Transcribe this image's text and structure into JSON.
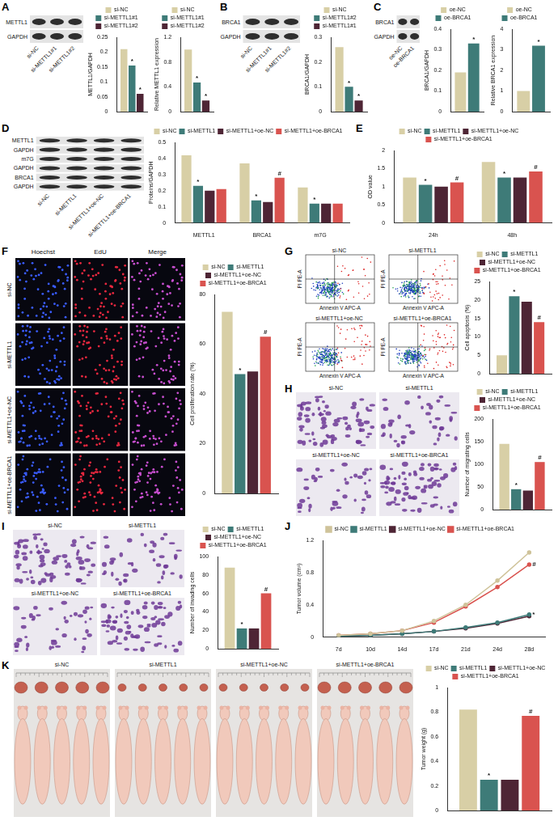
{
  "chart_data": [
    {
      "panel": "A",
      "type": "bar",
      "y_label": "METTL1/GAPDH",
      "categories": [
        null
      ],
      "series": [
        {
          "name": "si-NC",
          "color": "#d8cfa6",
          "values": [
            0.21
          ]
        },
        {
          "name": "si-METTL1#1",
          "color": "#3e7b78",
          "values": [
            0.155
          ],
          "annotations": [
            "*"
          ]
        },
        {
          "name": "si-METTL1#2",
          "color": "#4e2535",
          "values": [
            0.06
          ],
          "annotations": [
            "*"
          ]
        }
      ],
      "ylim": [
        0,
        0.25
      ],
      "yticks": [
        0,
        0.05,
        0.1,
        0.15,
        0.2,
        0.25
      ],
      "grid": false,
      "legend": "top",
      "tick_labels": "y"
    },
    {
      "panel": "A",
      "type": "bar",
      "y_label": "Relative METTL1 expression",
      "categories": [
        null
      ],
      "series": [
        {
          "name": "si-NC",
          "color": "#d8cfa6",
          "values": [
            1.0
          ]
        },
        {
          "name": "si-METTL1#1",
          "color": "#3e7b78",
          "values": [
            0.47
          ],
          "annotations": [
            "*"
          ]
        },
        {
          "name": "si-METTL1#2",
          "color": "#4e2535",
          "values": [
            0.18
          ],
          "annotations": [
            "*"
          ]
        }
      ],
      "ylim": [
        0,
        1.2
      ],
      "yticks": [
        0,
        0.4,
        0.8,
        1.2
      ],
      "grid": false,
      "legend": "top",
      "tick_labels": "y"
    },
    {
      "panel": "B",
      "type": "bar",
      "y_label": "BRCA1/GAPDH",
      "categories": [
        null
      ],
      "series": [
        {
          "name": "si-NC",
          "color": "#d8cfa6",
          "values": [
            0.26
          ]
        },
        {
          "name": "si-METTL1#2",
          "color": "#3e7b78",
          "values": [
            0.1
          ],
          "annotations": [
            "*"
          ]
        },
        {
          "name": "si-METTL1#1",
          "color": "#4e2535",
          "values": [
            0.045
          ],
          "annotations": [
            "*"
          ]
        }
      ],
      "ylim": [
        0,
        0.3
      ],
      "yticks": [
        0,
        0.1,
        0.2,
        0.3
      ],
      "grid": false,
      "legend": "top",
      "tick_labels": "y"
    },
    {
      "panel": "C",
      "type": "bar",
      "y_label": "BRCA1/GAPDH",
      "categories": [
        null
      ],
      "series": [
        {
          "name": "oe-NC",
          "color": "#d8cfa6",
          "values": [
            0.19
          ]
        },
        {
          "name": "oe-BRCA1",
          "color": "#3e7b78",
          "values": [
            0.33
          ],
          "annotations": [
            "*"
          ]
        }
      ],
      "ylim": [
        0,
        0.4
      ],
      "yticks": [
        0,
        0.1,
        0.2,
        0.3,
        0.4
      ],
      "grid": false,
      "legend": "top",
      "tick_labels": "y"
    },
    {
      "panel": "C",
      "type": "bar",
      "y_label": "Relative BRCA1 expression",
      "categories": [
        null
      ],
      "series": [
        {
          "name": "oe-NC",
          "color": "#d8cfa6",
          "values": [
            1.0
          ]
        },
        {
          "name": "oe-BRCA1",
          "color": "#3e7b78",
          "values": [
            3.2
          ],
          "annotations": [
            "*"
          ]
        }
      ],
      "ylim": [
        0,
        4
      ],
      "yticks": [
        0,
        1,
        2,
        3,
        4
      ],
      "grid": false,
      "legend": "top",
      "tick_labels": "y"
    },
    {
      "panel": "D",
      "type": "bar",
      "y_label": "Proteins/GAPDH",
      "categories": [
        "METTL1",
        "BRCA1",
        "m7G"
      ],
      "series": [
        {
          "name": "si-NC",
          "color": "#d8cfa6",
          "values": [
            0.42,
            0.37,
            0.22
          ]
        },
        {
          "name": "si-METTL1",
          "color": "#3e7b78",
          "values": [
            0.23,
            0.14,
            0.12
          ],
          "annotations": [
            "*",
            "*",
            "*"
          ]
        },
        {
          "name": "si-METTL1+oe-NC",
          "color": "#4e2535",
          "values": [
            0.2,
            0.13,
            0.12
          ]
        },
        {
          "name": "si-METTL1+oe-BRCA1",
          "color": "#d9534f",
          "values": [
            0.21,
            0.28,
            0.12
          ],
          "annotations": [
            null,
            "#",
            null
          ]
        }
      ],
      "ylim": [
        0,
        0.5
      ],
      "yticks": [
        0,
        0.1,
        0.2,
        0.3,
        0.4,
        0.5
      ],
      "grid": false,
      "legend": "top"
    },
    {
      "panel": "E",
      "type": "bar",
      "y_label": "OD value",
      "categories": [
        "24h",
        "48h"
      ],
      "series": [
        {
          "name": "si-NC",
          "color": "#d8cfa6",
          "values": [
            1.25,
            1.68
          ]
        },
        {
          "name": "si-METTL1",
          "color": "#3e7b78",
          "values": [
            1.05,
            1.25
          ],
          "annotations": [
            "*",
            "*"
          ]
        },
        {
          "name": "si-METTL1+oe-NC",
          "color": "#4e2535",
          "values": [
            1.0,
            1.25
          ]
        },
        {
          "name": "si-METTL1+oe-BRCA1",
          "color": "#d9534f",
          "values": [
            1.12,
            1.42
          ],
          "annotations": [
            "#",
            "#"
          ]
        }
      ],
      "ylim": [
        0,
        2
      ],
      "yticks": [
        0,
        0.5,
        1,
        1.5,
        2
      ],
      "grid": false,
      "legend": "top"
    },
    {
      "panel": "F",
      "type": "bar",
      "y_label": "Cell proliferation rate (%)",
      "categories": [
        null
      ],
      "series": [
        {
          "name": "si-NC",
          "color": "#d8cfa6",
          "values": [
            73
          ]
        },
        {
          "name": "si-METTL1",
          "color": "#3e7b78",
          "values": [
            48
          ],
          "annotations": [
            "*"
          ]
        },
        {
          "name": "si-METTL1+oe-NC",
          "color": "#4e2535",
          "values": [
            49
          ]
        },
        {
          "name": "si-METTL1+oe-BRCA1",
          "color": "#d9534f",
          "values": [
            63
          ],
          "annotations": [
            "#"
          ]
        }
      ],
      "ylim": [
        0,
        80
      ],
      "yticks": [
        0,
        20,
        40,
        60,
        80
      ],
      "grid": false,
      "legend": "top",
      "tick_labels": "y"
    },
    {
      "panel": "G",
      "type": "bar",
      "y_label": "Cell apoptosis (%)",
      "categories": [
        null
      ],
      "series": [
        {
          "name": "si-NC",
          "color": "#d8cfa6",
          "values": [
            5
          ]
        },
        {
          "name": "si-METTL1",
          "color": "#3e7b78",
          "values": [
            21
          ],
          "annotations": [
            "*"
          ]
        },
        {
          "name": "si-METTL1+oe-NC",
          "color": "#4e2535",
          "values": [
            19.5
          ]
        },
        {
          "name": "si-METTL1+oe-BRCA1",
          "color": "#d9534f",
          "values": [
            14
          ],
          "annotations": [
            "#"
          ]
        }
      ],
      "ylim": [
        0,
        25
      ],
      "yticks": [
        0,
        5,
        10,
        15,
        20,
        25
      ],
      "grid": false,
      "legend": "top",
      "tick_labels": "y"
    },
    {
      "panel": "H",
      "type": "bar",
      "y_label": "Number of migrating cells",
      "categories": [
        null
      ],
      "series": [
        {
          "name": "si-NC",
          "color": "#d8cfa6",
          "values": [
            145
          ]
        },
        {
          "name": "si-METTL1",
          "color": "#3e7b78",
          "values": [
            45
          ],
          "annotations": [
            "*"
          ]
        },
        {
          "name": "si-METTL1+oe-NC",
          "color": "#4e2535",
          "values": [
            42
          ]
        },
        {
          "name": "si-METTL1+oe-BRCA1",
          "color": "#d9534f",
          "values": [
            105
          ],
          "annotations": [
            "#"
          ]
        }
      ],
      "ylim": [
        0,
        200
      ],
      "yticks": [
        0,
        50,
        100,
        150,
        200
      ],
      "grid": false,
      "legend": "top",
      "tick_labels": "y"
    },
    {
      "panel": "I",
      "type": "bar",
      "y_label": "Number of invading cells",
      "categories": [
        null
      ],
      "series": [
        {
          "name": "si-NC",
          "color": "#d8cfa6",
          "values": [
            88
          ]
        },
        {
          "name": "si-METTL1",
          "color": "#3e7b78",
          "values": [
            22
          ],
          "annotations": [
            "*"
          ]
        },
        {
          "name": "si-METTL1+oe-NC",
          "color": "#4e2535",
          "values": [
            22
          ]
        },
        {
          "name": "si-METTL1+oe-BRCA1",
          "color": "#d9534f",
          "values": [
            60
          ],
          "annotations": [
            "#"
          ]
        }
      ],
      "ylim": [
        0,
        100
      ],
      "yticks": [
        0,
        20,
        40,
        60,
        80,
        100
      ],
      "grid": false,
      "legend": "top",
      "tick_labels": "y"
    },
    {
      "panel": "J",
      "type": "line",
      "y_label": "Tumor volume (cm³)",
      "categories": [
        "7d",
        "10d",
        "14d",
        "17d",
        "21d",
        "24d",
        "28d"
      ],
      "series": [
        {
          "name": "si-NC",
          "color": "#cfc39a",
          "values": [
            0.02,
            0.04,
            0.08,
            0.2,
            0.4,
            0.7,
            1.05
          ]
        },
        {
          "name": "si-METTL1",
          "color": "#3e7b78",
          "values": [
            0.01,
            0.02,
            0.04,
            0.07,
            0.12,
            0.18,
            0.28
          ],
          "annotations": [
            null,
            null,
            null,
            null,
            null,
            null,
            "*"
          ]
        },
        {
          "name": "si-METTL1+oe-NC",
          "color": "#4e2535",
          "values": [
            0.01,
            0.02,
            0.04,
            0.07,
            0.11,
            0.17,
            0.26
          ]
        },
        {
          "name": "si-METTL1+oe-BRCA1",
          "color": "#d9534f",
          "values": [
            0.02,
            0.04,
            0.08,
            0.18,
            0.38,
            0.62,
            0.9
          ],
          "annotations": [
            null,
            null,
            null,
            null,
            null,
            null,
            "#"
          ]
        }
      ],
      "ylim": [
        0,
        1.2
      ],
      "yticks": [
        0,
        0.4,
        0.8,
        1.2
      ],
      "grid": false,
      "legend": "top"
    },
    {
      "panel": "K",
      "type": "bar",
      "y_label": "Tumor weight (g)",
      "categories": [
        null
      ],
      "series": [
        {
          "name": "si-NC",
          "color": "#d8cfa6",
          "values": [
            0.82
          ]
        },
        {
          "name": "si-METTL1",
          "color": "#3e7b78",
          "values": [
            0.25
          ],
          "annotations": [
            "*"
          ]
        },
        {
          "name": "si-METTL1+oe-NC",
          "color": "#4e2535",
          "values": [
            0.25
          ]
        },
        {
          "name": "si-METTL1+oe-BRCA1",
          "color": "#d9534f",
          "values": [
            0.77
          ],
          "annotations": [
            "#"
          ]
        }
      ],
      "ylim": [
        0,
        1
      ],
      "yticks": [
        0,
        0.2,
        0.4,
        0.6,
        0.8,
        1
      ],
      "grid": false,
      "legend": "top",
      "tick_labels": "y"
    }
  ],
  "panels": [
    {
      "letter": "A",
      "blot": {
        "rows": [
          "METTL1",
          "GAPDH"
        ],
        "lanes": [
          "si-NC",
          "si-METTL1#1",
          "si-METTL1#2"
        ]
      }
    },
    {
      "letter": "B",
      "blot": {
        "rows": [
          "BRCA1",
          "GAPDH"
        ],
        "lanes": [
          "si-NC",
          "si-METTL1#1",
          "si-METTL1#2"
        ]
      }
    },
    {
      "letter": "C",
      "blot": {
        "rows": [
          "BRCA1",
          "GAPDH"
        ],
        "lanes": [
          "oe-NC",
          "oe-BRCA1"
        ]
      }
    },
    {
      "letter": "D",
      "blot": {
        "rows": [
          "METTL1",
          "GAPDH",
          "m7G",
          "GAPDH",
          "BRCA1",
          "GAPDH"
        ],
        "lanes": [
          "si-NC",
          "si-METTL1",
          "si-METTL1+oe-NC",
          "si-METTL1+oe-BRCA1"
        ]
      }
    },
    {
      "letter": "E"
    },
    {
      "letter": "F",
      "micrographs": {
        "columns": [
          "Hoechst",
          "EdU",
          "Merge"
        ],
        "rows": [
          "si-NC",
          "si-METTL1",
          "si-METTL1+oe-NC",
          "si-METTL1+oe-BRCA1"
        ]
      }
    },
    {
      "letter": "G",
      "flow": {
        "groups": [
          "si-NC",
          "si-METTL1",
          "si-METTL1+oe-NC",
          "si-METTL1+oe-BRCA1"
        ],
        "x_label": "Annexin V APC-A",
        "y_label": "PI PE-A"
      }
    },
    {
      "letter": "H",
      "transwell": {
        "groups": [
          "si-NC",
          "si-METTL1",
          "si-METTL1+oe-NC",
          "si-METTL1+oe-BRCA1"
        ]
      }
    },
    {
      "letter": "I",
      "transwell": {
        "groups": [
          "si-NC",
          "si-METTL1",
          "si-METTL1+oe-NC",
          "si-METTL1+oe-BRCA1"
        ]
      }
    },
    {
      "letter": "J"
    },
    {
      "letter": "K",
      "tumors": {
        "groups": [
          "si-NC",
          "si-METTL1",
          "si-METTL1+oe-NC",
          "si-METTL1+oe-BRCA1"
        ]
      }
    }
  ]
}
